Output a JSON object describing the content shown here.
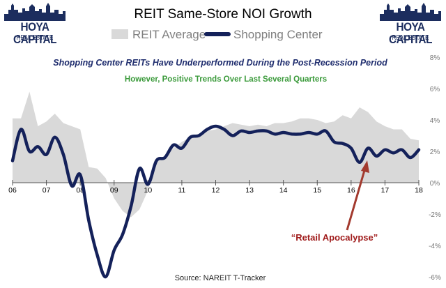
{
  "logo": {
    "line1": "HOYA CAPITAL",
    "line2": "REAL ESTATE"
  },
  "chart_data": {
    "type": "area",
    "title": "REIT Same-Store NOI Growth",
    "subtitle": "Shopping Center REITs Have Underperformed During the Post-Recession Period",
    "subtitle2": "However, Positive Trends Over Last Several Quarters",
    "annotation": "“Retail Apocalypse”",
    "source": "Source: NAREIT T-Tracker",
    "legend": [
      "REIT Average",
      "Shopping Center"
    ],
    "x_ticks": [
      "06",
      "07",
      "08",
      "09",
      "10",
      "11",
      "12",
      "13",
      "14",
      "15",
      "16",
      "17",
      "18"
    ],
    "y_ticks": [
      "8%",
      "6%",
      "4%",
      "2%",
      "0%",
      "-2%",
      "-4%",
      "-6%"
    ],
    "y_tick_values": [
      8,
      6,
      4,
      2,
      0,
      -2,
      -4,
      -6
    ],
    "xlim": [
      2006,
      2018
    ],
    "ylim": [
      -6,
      8
    ],
    "grid": false,
    "legend_position": "top",
    "colors": {
      "area": "#d9d9d9",
      "line": "#14215a",
      "title": "#000000",
      "subtitle": "#1f2d6e",
      "subtitle2": "#3a9a3a",
      "annotation": "#a01c1c",
      "arrow": "#a33a2e",
      "axis": "#555555",
      "tick_label": "#000000",
      "right_tick": "#777777"
    },
    "series": [
      {
        "name": "REIT Average",
        "style": "area",
        "x": [
          2006.0,
          2006.25,
          2006.5,
          2006.75,
          2007.0,
          2007.25,
          2007.5,
          2007.75,
          2008.0,
          2008.25,
          2008.5,
          2008.75,
          2009.0,
          2009.25,
          2009.5,
          2009.75,
          2010.0,
          2010.25,
          2010.5,
          2010.75,
          2011.0,
          2011.25,
          2011.5,
          2011.75,
          2012.0,
          2012.25,
          2012.5,
          2012.75,
          2013.0,
          2013.25,
          2013.5,
          2013.75,
          2014.0,
          2014.25,
          2014.5,
          2014.75,
          2015.0,
          2015.25,
          2015.5,
          2015.75,
          2016.0,
          2016.25,
          2016.5,
          2016.75,
          2017.0,
          2017.25,
          2017.5,
          2017.75,
          2018.0
        ],
        "values": [
          4.1,
          4.1,
          5.8,
          3.6,
          3.9,
          4.4,
          3.8,
          3.6,
          3.4,
          1.0,
          0.9,
          0.3,
          -1.0,
          -1.8,
          -2.2,
          -1.7,
          -0.5,
          1.3,
          1.7,
          2.2,
          2.6,
          2.9,
          3.1,
          3.3,
          3.4,
          3.6,
          3.8,
          3.7,
          3.6,
          3.7,
          3.6,
          3.8,
          3.8,
          3.9,
          4.1,
          4.1,
          4.0,
          3.8,
          3.9,
          4.3,
          4.1,
          4.8,
          4.5,
          3.9,
          3.6,
          3.4,
          3.4,
          2.8,
          2.7
        ]
      },
      {
        "name": "Shopping Center",
        "style": "line",
        "x": [
          2006.0,
          2006.25,
          2006.5,
          2006.75,
          2007.0,
          2007.25,
          2007.5,
          2007.75,
          2008.0,
          2008.25,
          2008.5,
          2008.75,
          2009.0,
          2009.25,
          2009.5,
          2009.75,
          2010.0,
          2010.25,
          2010.5,
          2010.75,
          2011.0,
          2011.25,
          2011.5,
          2011.75,
          2012.0,
          2012.25,
          2012.5,
          2012.75,
          2013.0,
          2013.25,
          2013.5,
          2013.75,
          2014.0,
          2014.25,
          2014.5,
          2014.75,
          2015.0,
          2015.25,
          2015.5,
          2015.75,
          2016.0,
          2016.25,
          2016.5,
          2016.75,
          2017.0,
          2017.25,
          2017.5,
          2017.75,
          2018.0
        ],
        "values": [
          1.4,
          3.4,
          2.0,
          2.3,
          1.8,
          2.9,
          1.8,
          -0.2,
          0.5,
          -2.4,
          -4.6,
          -6.0,
          -4.3,
          -3.3,
          -1.5,
          0.9,
          -0.1,
          1.4,
          1.6,
          2.4,
          2.2,
          2.9,
          3.0,
          3.4,
          3.6,
          3.4,
          3.0,
          3.3,
          3.2,
          3.3,
          3.3,
          3.1,
          3.2,
          3.1,
          3.1,
          3.2,
          3.1,
          3.3,
          2.6,
          2.5,
          2.2,
          1.3,
          2.2,
          1.7,
          2.1,
          1.9,
          2.1,
          1.6,
          2.1
        ]
      }
    ]
  }
}
